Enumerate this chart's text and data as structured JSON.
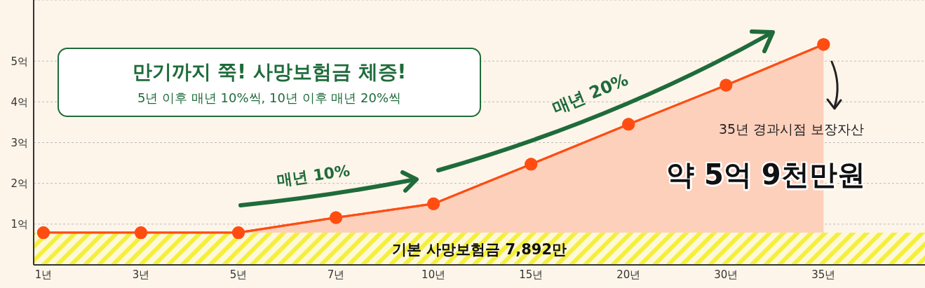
{
  "chart_data": {
    "type": "area",
    "title": "만기까지 쭉! 사망보험금 체증!",
    "subtitle": "5년 이후 매년 10%씩, 10년 이후 매년 20%씩",
    "categories": [
      "1년",
      "3년",
      "5년",
      "7년",
      "10년",
      "15년",
      "20년",
      "30년",
      "35년"
    ],
    "series": [
      {
        "color": "#ff4d12",
        "values": [
          0.79,
          0.79,
          0.79,
          1.16,
          1.5,
          2.47,
          3.45,
          4.41,
          5.41
        ]
      }
    ],
    "ylim": [
      0,
      6.5
    ],
    "yticks": [
      {
        "value": 1,
        "label": "1억"
      },
      {
        "value": 2,
        "label": "2억"
      },
      {
        "value": 3,
        "label": "3억"
      },
      {
        "value": 4,
        "label": "4억"
      },
      {
        "value": 5,
        "label": "5억"
      }
    ],
    "grid": "y",
    "marker": "circle",
    "bands": [
      {
        "axis": "y",
        "from": 0,
        "to": 0.7892,
        "label": "기본 사망보험금 7,892만",
        "color": "#f5ef3c"
      }
    ],
    "annotations": [
      "매년 10%",
      "매년 20%",
      "35년 경과시점 보장자산",
      "약 5억 9천만원"
    ]
  }
}
